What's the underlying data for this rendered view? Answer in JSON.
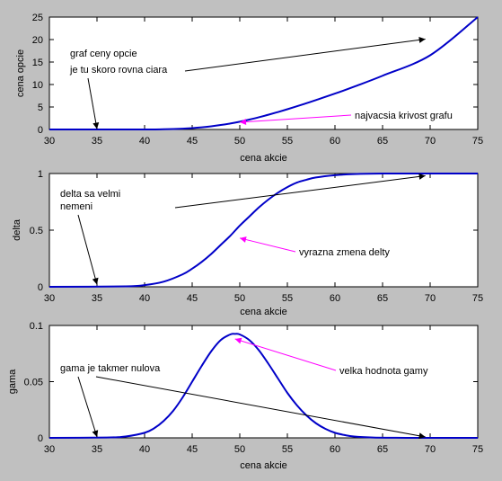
{
  "chart_data": [
    {
      "type": "line",
      "xlabel": "cena akcie",
      "ylabel": "cena opcie",
      "xlim": [
        30,
        75
      ],
      "ylim": [
        0,
        25
      ],
      "xticks": [
        "30",
        "35",
        "40",
        "45",
        "50",
        "55",
        "60",
        "65",
        "70",
        "75"
      ],
      "yticks": [
        "0",
        "5",
        "10",
        "15",
        "20",
        "25"
      ],
      "series": [
        {
          "color": "#0000c8",
          "x": [
            30,
            40,
            42,
            44,
            45,
            46,
            47,
            48,
            49,
            50,
            51,
            52,
            53,
            54,
            55,
            56,
            57,
            58,
            60,
            62,
            65,
            70,
            75
          ],
          "y": [
            0,
            0.01,
            0.05,
            0.17,
            0.3,
            0.47,
            0.7,
            0.99,
            1.33,
            1.73,
            2.2,
            2.71,
            3.27,
            3.87,
            4.5,
            5.16,
            5.84,
            6.54,
            7.98,
            9.52,
            11.95,
            16.5,
            25
          ]
        }
      ],
      "annotations": [
        {
          "lines": [
            "graf ceny opcie",
            "je tu skoro rovna ciara"
          ],
          "color": "#000000",
          "arrows": [
            [
              35,
              0.1
            ],
            [
              69.5,
              20.1
            ]
          ]
        },
        {
          "lines": [
            "najvacsia krivost grafu"
          ],
          "color": "#ff00ff",
          "arrows": [
            [
              50,
              1.6
            ]
          ]
        }
      ]
    },
    {
      "type": "line",
      "xlabel": "cena akcie",
      "ylabel": "delta",
      "xlim": [
        30,
        75
      ],
      "ylim": [
        0,
        1
      ],
      "xticks": [
        "30",
        "35",
        "40",
        "45",
        "50",
        "55",
        "60",
        "65",
        "70",
        "75"
      ],
      "yticks": [
        "0",
        "0.5",
        "1"
      ],
      "series": [
        {
          "color": "#0000c8",
          "x": [
            30,
            38,
            40,
            42,
            44,
            45,
            46,
            47,
            48,
            49,
            50,
            51,
            52,
            53,
            54,
            55,
            56,
            57,
            58,
            60,
            62,
            65,
            70,
            75
          ],
          "y": [
            0,
            0.004,
            0.015,
            0.045,
            0.11,
            0.16,
            0.22,
            0.29,
            0.37,
            0.45,
            0.54,
            0.62,
            0.7,
            0.77,
            0.83,
            0.88,
            0.92,
            0.945,
            0.965,
            0.985,
            0.995,
            1,
            1,
            1
          ]
        }
      ],
      "annotations": [
        {
          "lines": [
            "delta sa velmi",
            "nemeni"
          ],
          "color": "#000000",
          "arrows": [
            [
              35,
              0.02
            ],
            [
              69.5,
              0.98
            ]
          ]
        },
        {
          "lines": [
            "vyrazna zmena delty"
          ],
          "color": "#ff00ff",
          "arrows": [
            [
              50,
              0.43
            ]
          ]
        }
      ]
    },
    {
      "type": "line",
      "xlabel": "cena akcie",
      "ylabel": "gama",
      "xlim": [
        30,
        75
      ],
      "ylim": [
        0,
        0.1
      ],
      "xticks": [
        "30",
        "35",
        "40",
        "45",
        "50",
        "55",
        "60",
        "65",
        "70",
        "75"
      ],
      "yticks": [
        "0",
        "0.05",
        "0.1"
      ],
      "series": [
        {
          "color": "#0000c8",
          "x": [
            30,
            36,
            38,
            40,
            41,
            42,
            43,
            44,
            45,
            46,
            47,
            48,
            49,
            49.5,
            50,
            51,
            52,
            53,
            54,
            55,
            56,
            57,
            58,
            59,
            60,
            61,
            62,
            64,
            66,
            68,
            75
          ],
          "y": [
            0,
            0.0003,
            0.0012,
            0.0045,
            0.0085,
            0.015,
            0.024,
            0.036,
            0.05,
            0.064,
            0.077,
            0.087,
            0.092,
            0.0925,
            0.092,
            0.087,
            0.078,
            0.066,
            0.053,
            0.04,
            0.029,
            0.02,
            0.013,
            0.008,
            0.0045,
            0.0025,
            0.0012,
            0.0003,
            0.0001,
            0,
            0
          ]
        }
      ],
      "annotations": [
        {
          "lines": [
            "gama je takmer nulova"
          ],
          "color": "#000000",
          "arrows": [
            [
              35,
              0.0008
            ],
            [
              69.5,
              0.0008
            ]
          ]
        },
        {
          "lines": [
            "velka hodnota gamy"
          ],
          "color": "#ff00ff",
          "arrows": [
            [
              49.5,
              0.088
            ]
          ]
        }
      ]
    }
  ]
}
